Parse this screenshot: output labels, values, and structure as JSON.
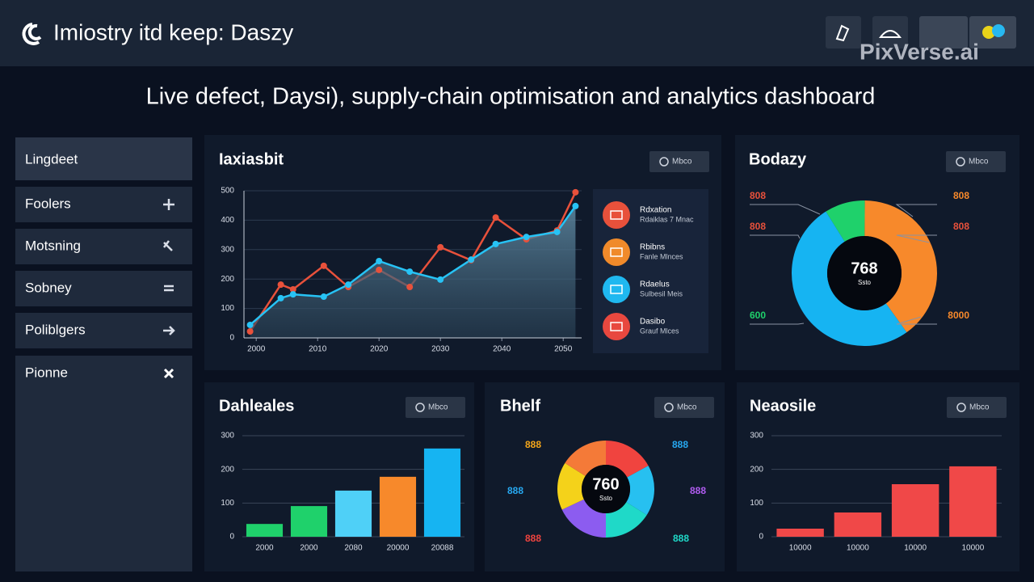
{
  "header": {
    "title": "Imiostry itd keep: Daszy",
    "watermark": "PixVerse.ai"
  },
  "subtitle": "Live defect, Daysi), supply-chain optimisation and analytics dashboard",
  "sidebar": [
    "Lingdeet",
    "Foolers",
    "Motsning",
    "Sobney",
    "Poliblgers",
    "Pionne"
  ],
  "chart_data": [
    {
      "type": "line",
      "title": "Iaxiasbit",
      "button": "Mbco",
      "x": [
        1999,
        2004,
        2006,
        2011,
        2015,
        2020,
        2025,
        2030,
        2035,
        2039,
        2044,
        2049,
        2052
      ],
      "xlim": [
        1998,
        2053
      ],
      "xticks": [
        2000,
        2010,
        2020,
        2030,
        2040,
        2050
      ],
      "ylim": [
        0,
        500
      ],
      "yticks": [
        0,
        100,
        200,
        300,
        400,
        500
      ],
      "grid": true,
      "series": [
        {
          "color": "#e8513b",
          "values": [
            22,
            181,
            165,
            245,
            173,
            231,
            173,
            308,
            264,
            409,
            335,
            365,
            495
          ]
        },
        {
          "color": "#27c3f5",
          "area": true,
          "values": [
            44,
            135,
            148,
            140,
            181,
            261,
            225,
            198,
            266,
            319,
            343,
            360,
            448
          ]
        }
      ],
      "legend": [
        {
          "name": "Rdxation",
          "detail": "Rdaiklas 7 Mnac",
          "color": "#e8513b"
        },
        {
          "name": "Rbibns",
          "detail": "Fanle Mlnces",
          "color": "#f08a2a"
        },
        {
          "name": "Rdaelus",
          "detail": "Sulbesil Meis",
          "color": "#1fb8f0"
        },
        {
          "name": "Dasibo",
          "detail": "Grauf Mlces",
          "color": "#e8483f"
        }
      ]
    },
    {
      "type": "donut",
      "title": "Bodazy",
      "button": "Mbco",
      "values": [
        9,
        40,
        51
      ],
      "colors": [
        "#1fd16b",
        "#f7892b",
        "#16b4f2"
      ],
      "center_label": "768",
      "center_sublabel": "Ssto",
      "annotations": [
        {
          "text": "808",
          "color": "#e8513b"
        },
        {
          "text": "808",
          "color": "#e8513b"
        },
        {
          "text": "600",
          "color": "#1fd16b"
        },
        {
          "text": "808",
          "color": "#f7892b"
        },
        {
          "text": "808",
          "color": "#e8513b"
        },
        {
          "text": "8000",
          "color": "#f7892b"
        }
      ]
    },
    {
      "type": "bar",
      "title": "Dahleales",
      "button": "Mbco",
      "categories": [
        "2000",
        "2000",
        "2080",
        "20000",
        "20088"
      ],
      "values": [
        38,
        91,
        137,
        178,
        262
      ],
      "colors": [
        "#1fd16b",
        "#1fd16b",
        "#4fd0f7",
        "#f7892b",
        "#16b4f2"
      ],
      "ylim": [
        0,
        300
      ],
      "yticks": [
        0,
        100,
        200,
        300
      ],
      "grid": true
    },
    {
      "type": "donut",
      "title": "Bhelf",
      "button": "Mbco",
      "values": [
        17,
        17,
        16,
        18,
        16,
        16
      ],
      "colors": [
        "#f0443f",
        "#27c0f0",
        "#1fd9c8",
        "#8c5cf0",
        "#f4d21a",
        "#f47a38"
      ],
      "center_label": "760",
      "center_sublabel": "Ssto",
      "annotations": [
        {
          "text": "888",
          "color": "#f4a61a"
        },
        {
          "text": "888",
          "color": "#27a8f0"
        },
        {
          "text": "888",
          "color": "#f0443f"
        },
        {
          "text": "888",
          "color": "#27a8f0"
        },
        {
          "text": "888",
          "color": "#b05cf0"
        },
        {
          "text": "888",
          "color": "#1fd9c8"
        }
      ]
    },
    {
      "type": "bar",
      "title": "Neaosile",
      "button": "Mbco",
      "categories": [
        "10000",
        "10000",
        "10000",
        "10000"
      ],
      "values": [
        24,
        72,
        156,
        209
      ],
      "color": "#f04848",
      "ylim": [
        0,
        300
      ],
      "yticks": [
        0,
        100,
        200,
        300
      ],
      "grid": true
    }
  ]
}
